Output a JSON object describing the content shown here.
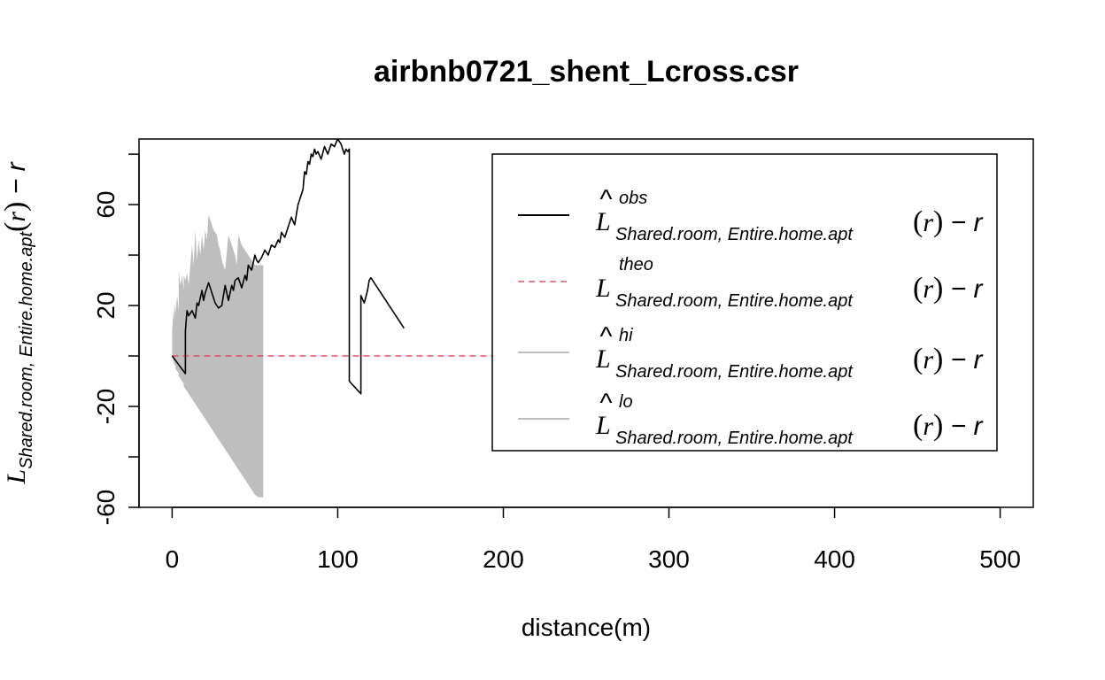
{
  "chart_data": {
    "type": "line",
    "title": "airbnb0721_shent_Lcross.csr",
    "xlabel": "distance(m)",
    "ylabel": {
      "main": "L",
      "sub": "Shared.room, Entire.home.apt",
      "paren_open": "(",
      "r": "r",
      "paren_close": ")",
      "rest": " − r"
    },
    "xlim": [
      -20,
      520
    ],
    "ylim": [
      -60,
      86
    ],
    "x_ticks": [
      0,
      100,
      200,
      300,
      400,
      500
    ],
    "y_ticks": [
      -60,
      -40,
      -20,
      0,
      20,
      40,
      60,
      80
    ],
    "y_tick_labels": [
      {
        "value": -60,
        "label": "-60"
      },
      {
        "value": -20,
        "label": "-20"
      },
      {
        "value": 20,
        "label": "20"
      },
      {
        "value": 60,
        "label": "60"
      }
    ],
    "legend": {
      "position": "top-right",
      "entries": [
        {
          "sup": "obs",
          "sub": "Shared.room, Entire.home.apt",
          "main": "L",
          "hat": true,
          "style": "solid",
          "color": "#000000"
        },
        {
          "sup": "theo",
          "sub": "Shared.room, Entire.home.apt",
          "main": "L",
          "hat": false,
          "style": "dashed",
          "color": "#DF536B"
        },
        {
          "sup": "hi",
          "sub": "Shared.room, Entire.home.apt",
          "main": "L",
          "hat": true,
          "style": "solid",
          "color": "#BEBEBE"
        },
        {
          "sup": "lo",
          "sub": "Shared.room, Entire.home.apt",
          "main": "L",
          "hat": true,
          "style": "solid",
          "color": "#BEBEBE"
        }
      ],
      "paren_open": "(",
      "r": "r",
      "paren_close": ")",
      "rest": " − r"
    },
    "envelope": {
      "color": "#BEBEBE",
      "x": [
        0,
        1,
        1,
        2,
        2,
        3,
        4,
        4,
        5,
        6,
        7,
        7,
        8,
        9,
        10,
        12,
        13,
        14,
        15,
        16,
        17,
        18,
        19,
        20,
        21,
        22,
        23,
        24,
        25,
        27,
        28,
        29,
        30,
        31,
        32,
        34,
        36,
        38,
        39,
        40,
        41,
        42,
        44,
        46,
        48,
        50,
        52,
        55
      ],
      "hi": [
        10,
        20,
        14,
        22,
        16,
        24,
        18,
        34,
        28,
        32,
        26,
        32,
        30,
        33,
        28,
        44,
        36,
        50,
        38,
        46,
        40,
        48,
        42,
        50,
        46,
        56,
        54,
        52,
        50,
        48,
        44,
        42,
        38,
        36,
        34,
        48,
        44,
        40,
        36,
        48,
        46,
        44,
        42,
        40,
        38,
        36,
        36,
        36
      ],
      "lo": [
        0,
        -2,
        -3,
        -4,
        -5,
        -6,
        -7,
        -8,
        -9,
        -10,
        -11,
        -12,
        -13,
        -14,
        -15,
        -17,
        -18,
        -19,
        -20,
        -21,
        -22,
        -23,
        -24,
        -25,
        -26,
        -27,
        -28,
        -29,
        -30,
        -32,
        -33,
        -34,
        -35,
        -36,
        -37,
        -39,
        -41,
        -43,
        -44,
        -45,
        -46,
        -47,
        -49,
        -51,
        -53,
        -55,
        -56,
        -56
      ]
    },
    "theo": {
      "color": "#DF536B",
      "x": [
        0,
        420
      ],
      "y": [
        0,
        0
      ]
    },
    "series": [
      {
        "name": "obs",
        "color": "#000000",
        "x": [
          0,
          8,
          8,
          9,
          10,
          12,
          14,
          15,
          16,
          18,
          19,
          20,
          22,
          24,
          26,
          28,
          30,
          32,
          34,
          36,
          37,
          38,
          40,
          42,
          44,
          45,
          46,
          48,
          50,
          51,
          52,
          54,
          56,
          58,
          60,
          62,
          64,
          65,
          66,
          68,
          70,
          72,
          74,
          76,
          78,
          79,
          80,
          81,
          82,
          83,
          84,
          85,
          86,
          87,
          88,
          90,
          92,
          94,
          96,
          98,
          100,
          102,
          104,
          105,
          106,
          107,
          107,
          114,
          114,
          116,
          118,
          119,
          120,
          140
        ],
        "y": [
          0,
          -7,
          10,
          18,
          16,
          18,
          15,
          21,
          20,
          26,
          22,
          25,
          29,
          25,
          21,
          19,
          20,
          28,
          22,
          28,
          26,
          30,
          31,
          27,
          32,
          30,
          36,
          34,
          40,
          38,
          37,
          39,
          42,
          40,
          44,
          43,
          46,
          45,
          49,
          47,
          51,
          55,
          52,
          60,
          64,
          66,
          73,
          72,
          77,
          76,
          80,
          79,
          82,
          80,
          81,
          78,
          83,
          80,
          84,
          83,
          86,
          84,
          80,
          82,
          81,
          82,
          -10,
          -15,
          24,
          21,
          26,
          30,
          31,
          11
        ]
      }
    ]
  }
}
